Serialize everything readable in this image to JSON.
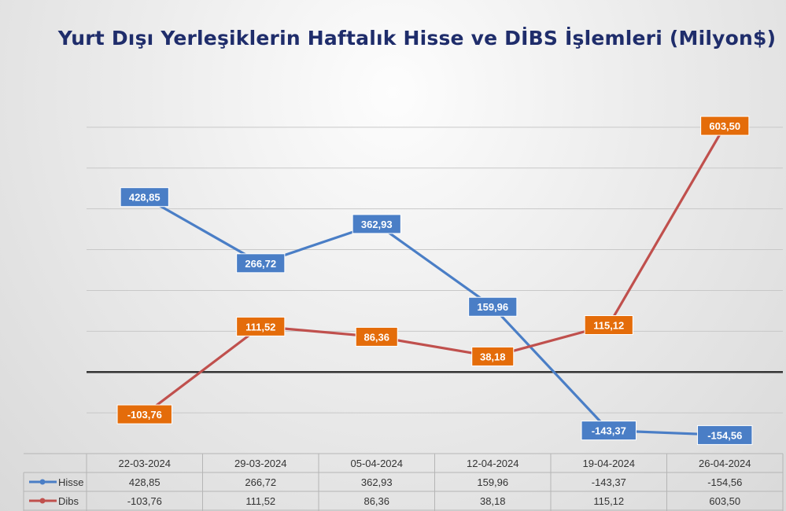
{
  "chart_data": {
    "type": "line",
    "title": "Yurt Dışı Yerleşiklerin Haftalık Hisse ve DİBS İşlemleri (Milyon$)",
    "categories": [
      "22-03-2024",
      "29-03-2024",
      "05-04-2024",
      "12-04-2024",
      "19-04-2024",
      "26-04-2024"
    ],
    "series": [
      {
        "name": "Hisse",
        "values": [
          428.85,
          266.72,
          362.93,
          159.96,
          -143.37,
          -154.56
        ],
        "labels": [
          "428,85",
          "266,72",
          "362,93",
          "159,96",
          "-143,37",
          "-154,56"
        ],
        "color": "#4a7ec6",
        "label_bg": "#4a7ec6"
      },
      {
        "name": "Dibs",
        "values": [
          -103.76,
          111.52,
          86.36,
          38.18,
          115.12,
          603.5
        ],
        "labels": [
          "-103,76",
          "111,52",
          "86,36",
          "38,18",
          "115,12",
          "603,50"
        ],
        "color": "#c0504d",
        "label_bg": "#e46c0a"
      }
    ],
    "ylim": [
      -200,
      700
    ],
    "grid": true,
    "legend": "data-table"
  }
}
